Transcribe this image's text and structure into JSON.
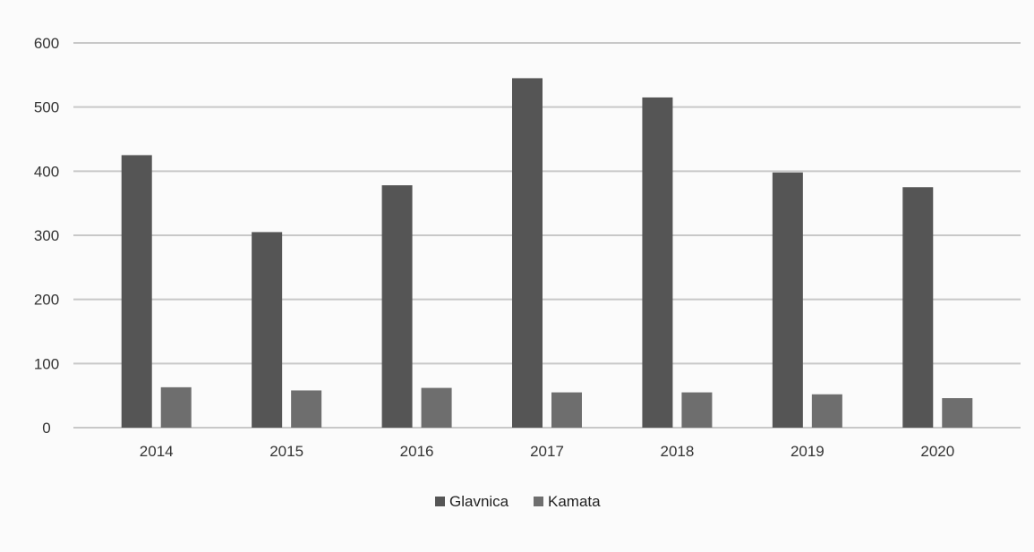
{
  "chart_data": {
    "type": "bar",
    "title": "",
    "xlabel": "",
    "ylabel": "",
    "categories": [
      "2014",
      "2015",
      "2016",
      "2017",
      "2018",
      "2019",
      "2020"
    ],
    "series": [
      {
        "name": "Glavnica",
        "values": [
          425,
          305,
          378,
          545,
          515,
          398,
          375
        ],
        "color": "#555555"
      },
      {
        "name": "Kamata",
        "values": [
          63,
          58,
          62,
          55,
          55,
          52,
          46
        ],
        "color": "#6e6e6e"
      }
    ],
    "yticks": [
      "0",
      "100",
      "200",
      "300",
      "400",
      "500",
      "600"
    ],
    "ylim": [
      0,
      600
    ],
    "grid": true,
    "legend_position": "bottom"
  }
}
